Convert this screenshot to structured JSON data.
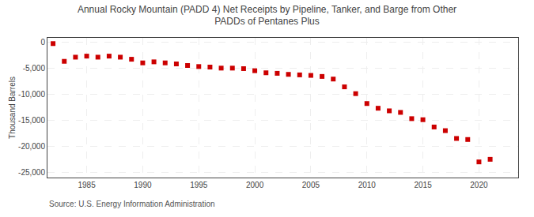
{
  "chart_data": {
    "type": "scatter",
    "title": "Annual Rocky Mountain (PADD 4) Net Receipts by Pipeline, Tanker, and Barge from Other\nPADDs of Pentanes Plus",
    "ylabel": "Thousand Barrels",
    "annotations": [
      "Source: U.S. Energy Information Administration"
    ],
    "color": "#cc0000",
    "marker": "square",
    "grid": true,
    "xlim": [
      1981.5,
      2023.5
    ],
    "ylim": [
      -26000,
      800
    ],
    "xticks": [
      1985,
      1990,
      1995,
      2000,
      2005,
      2010,
      2015,
      2020
    ],
    "yticks": [
      0,
      {
        "value": -5000,
        "label": "-5,000"
      },
      {
        "value": -10000,
        "label": "-10,000"
      },
      {
        "value": -15000,
        "label": "-15,000"
      },
      {
        "value": -20000,
        "label": "-20,000"
      },
      {
        "value": -25000,
        "label": "-25,000"
      }
    ],
    "x": [
      1982,
      1983,
      1984,
      1985,
      1986,
      1987,
      1988,
      1989,
      1990,
      1991,
      1992,
      1993,
      1994,
      1995,
      1996,
      1997,
      1998,
      1999,
      2000,
      2001,
      2002,
      2003,
      2004,
      2005,
      2006,
      2007,
      2008,
      2009,
      2010,
      2011,
      2012,
      2013,
      2014,
      2015,
      2016,
      2017,
      2018,
      2019,
      2020,
      2021
    ],
    "values": [
      -300,
      -3700,
      -2900,
      -2700,
      -2900,
      -2700,
      -2900,
      -3300,
      -4000,
      -3800,
      -4000,
      -4200,
      -4500,
      -4700,
      -4800,
      -5000,
      -5000,
      -5100,
      -5500,
      -5900,
      -6000,
      -6200,
      -6300,
      -6400,
      -6600,
      -7100,
      -8600,
      -9900,
      -11800,
      -12700,
      -13200,
      -13500,
      -14700,
      -14900,
      -16300,
      -17000,
      -18500,
      -18700,
      -23000,
      -22500
    ]
  }
}
